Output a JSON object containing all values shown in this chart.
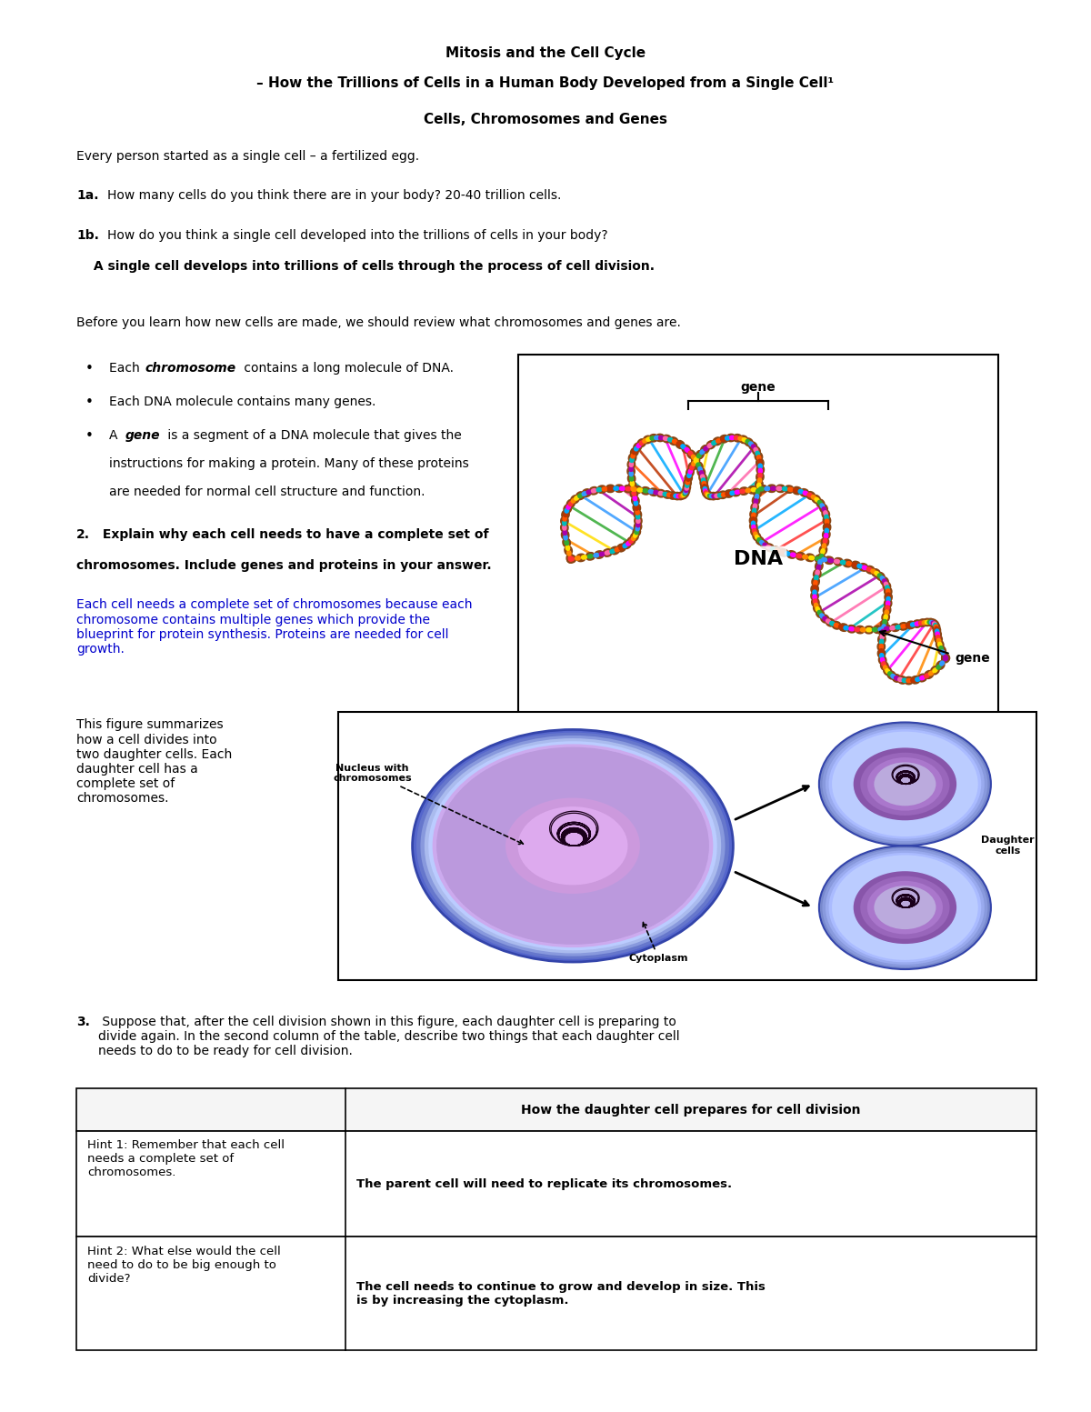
{
  "title_line1": "Mitosis and the Cell Cycle",
  "title_line2": "– How the Trillions of Cells in a Human Body Developed from a Single Cell¹",
  "subtitle": "Cells, Chromosomes and Genes",
  "intro": "Every person started as a single cell – a fertilized egg.",
  "q1a_answer": "How many cells do you think there are in your body? 20-40 trillion cells.",
  "q1b_q": "How do you think a single cell developed into the trillions of cells in your body?",
  "q1b_answer": " A single cell develops into trillions of cells through the process of cell division.",
  "before_text": "Before you learn how new cells are made, we should review what chromosomes and genes are.",
  "q2_answer": "Each cell needs a complete set of chromosomes because each\nchromosome contains multiple genes which provide the\nblueprint for protein synthesis. Proteins are needed for cell\ngrowth.",
  "fig1_caption": "This figure summarizes\nhow a cell divides into\ntwo daughter cells. Each\ndaughter cell has a\ncomplete set of\nchromosomes.",
  "q3_text": " Suppose that, after the cell division shown in this figure, each daughter cell is preparing to\ndivide again. In the second column of the table, describe two things that each daughter cell\nneeds to do to be ready for cell division.",
  "table_col2_header": "How the daughter cell prepares for cell division",
  "table_hint1_left": "Hint 1: Remember that each cell\nneeds a complete set of\nchromosomes.",
  "table_hint1_right": "The parent cell will need to replicate its chromosomes.",
  "table_hint2_left": "Hint 2: What else would the cell\nneed to do to be big enough to\ndivide?",
  "table_hint2_right": "The cell needs to continue to grow and develop in size. This\nis by increasing the cytoplasm.",
  "bg_color": "#ffffff",
  "text_color": "#000000",
  "blue_color": "#0000cc"
}
